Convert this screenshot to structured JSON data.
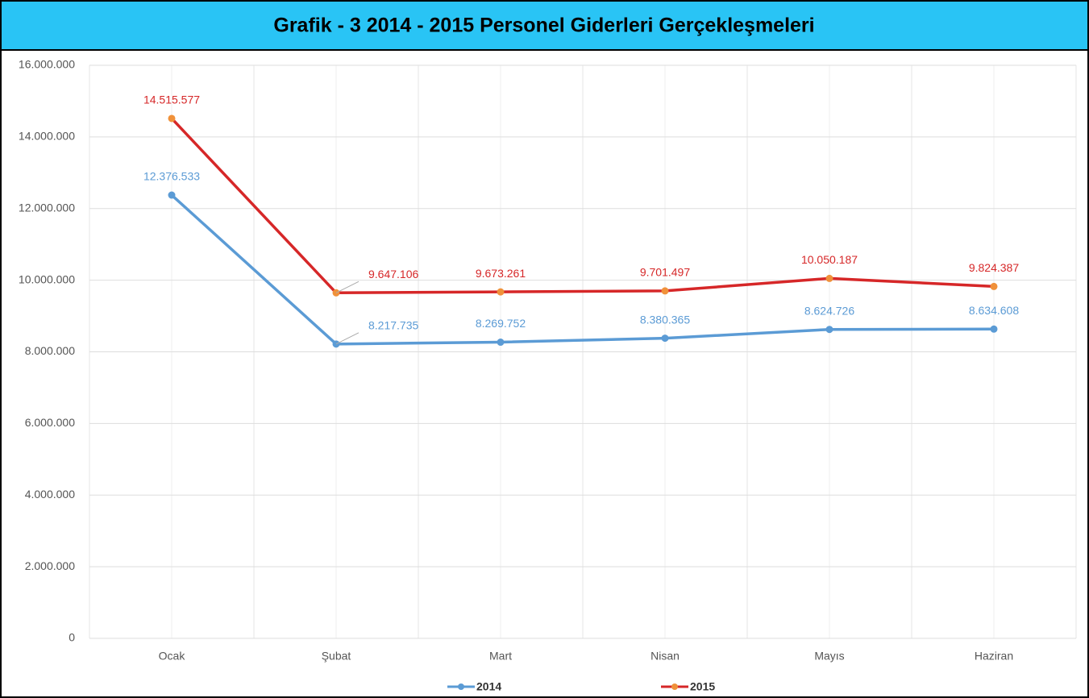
{
  "chart_data": {
    "type": "line",
    "title": "Grafik - 3 2014 - 2015 Personel Giderleri Gerçekleşmeleri",
    "categories": [
      "Ocak",
      "Şubat",
      "Mart",
      "Nisan",
      "Mayıs",
      "Haziran"
    ],
    "series": [
      {
        "name": "2014",
        "color": "#5b9bd5",
        "marker_color": "#5b9bd5",
        "values": [
          12376533,
          8217735,
          8269752,
          8380365,
          8624726,
          8634608
        ],
        "value_labels": [
          "12.376.533",
          "8.217.735",
          "8.269.752",
          "8.380.365",
          "8.624.726",
          "8.634.608"
        ]
      },
      {
        "name": "2015",
        "color": "#d62728",
        "marker_color": "#f0913a",
        "values": [
          14515577,
          9647106,
          9673261,
          9701497,
          10050187,
          9824387
        ],
        "value_labels": [
          "14.515.577",
          "9.647.106",
          "9.673.261",
          "9.701.497",
          "10.050.187",
          "9.824.387"
        ]
      }
    ],
    "ylim": [
      0,
      16000000
    ],
    "yticks": [
      0,
      {
        "value": 2000000,
        "label": "2.000.000"
      },
      {
        "value": 4000000,
        "label": "4.000.000"
      },
      {
        "value": 6000000,
        "label": "6.000.000"
      },
      {
        "value": 8000000,
        "label": "8.000.000"
      },
      {
        "value": 10000000,
        "label": "10.000.000"
      },
      {
        "value": 12000000,
        "label": "12.000.000"
      },
      {
        "value": 14000000,
        "label": "14.000.000"
      },
      {
        "value": 16000000,
        "label": "16.000.000"
      }
    ],
    "grid": true
  }
}
